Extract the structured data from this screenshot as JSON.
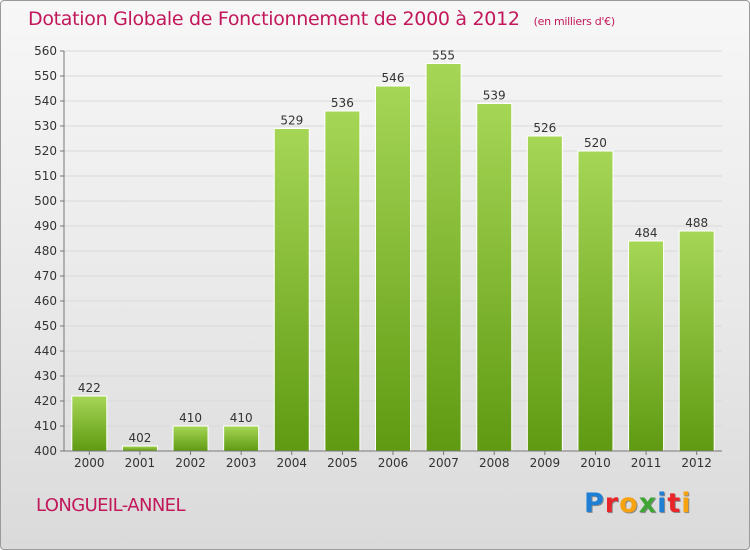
{
  "header": {
    "title": "Dotation Globale de Fonctionnement de 2000 à 2012",
    "unit": "(en milliers d'€)"
  },
  "footer": {
    "commune": "LONGUEIL-ANNEL",
    "logo_text": "Proxiti",
    "logo_colors": [
      "#1f7fd4",
      "#e8262a",
      "#f7a20f",
      "#3fa535",
      "#1f7fd4",
      "#e8262a",
      "#f7a20f"
    ]
  },
  "colors": {
    "title": "#c2185b",
    "bar_top": "#a6d656",
    "bar_bottom": "#5f9a12",
    "grid": "#d9d9d9",
    "axis": "#777777"
  },
  "chart_data": {
    "type": "bar",
    "categories": [
      "2000",
      "2001",
      "2002",
      "2003",
      "2004",
      "2005",
      "2006",
      "2007",
      "2008",
      "2009",
      "2010",
      "2011",
      "2012"
    ],
    "values": [
      422,
      402,
      410,
      410,
      529,
      536,
      546,
      555,
      539,
      526,
      520,
      484,
      488
    ],
    "ylim": [
      400,
      560
    ],
    "ytick_step": 10,
    "grid": true,
    "data_labels": true
  }
}
